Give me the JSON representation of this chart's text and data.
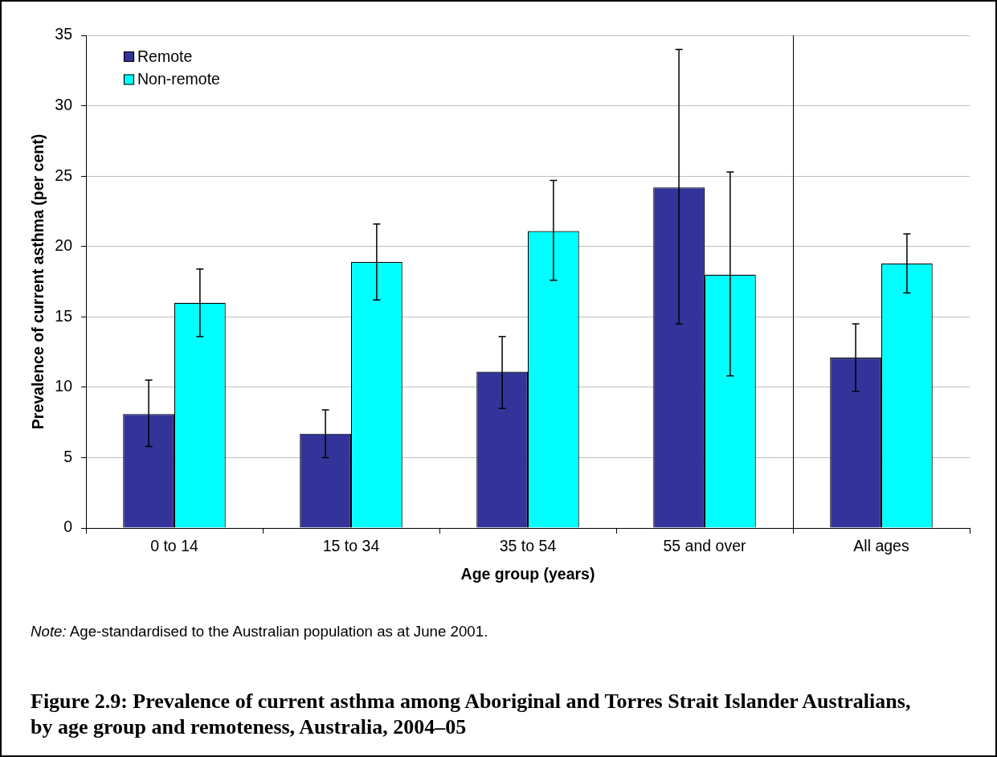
{
  "chart_data": {
    "type": "bar",
    "title": "Figure 2.9: Prevalence of current asthma among Aboriginal and Torres Strait Islander Australians, by age group and remoteness, Australia, 2004–05",
    "xlabel": "Age group (years)",
    "ylabel": "Prevalence of current asthma (per cent)",
    "categories": [
      "0 to 14",
      "15 to 34",
      "35 to 54",
      "55 and over",
      "All ages"
    ],
    "series": [
      {
        "name": "Remote",
        "color": "#333399",
        "values": [
          8.1,
          6.7,
          11.1,
          24.2,
          12.1
        ],
        "errors": [
          [
            5.8,
            10.5
          ],
          [
            5.0,
            8.4
          ],
          [
            8.5,
            13.6
          ],
          [
            14.5,
            34.0
          ],
          [
            9.7,
            14.5
          ]
        ]
      },
      {
        "name": "Non-remote",
        "color": "#00ffff",
        "values": [
          16.0,
          18.9,
          21.1,
          18.0,
          18.8
        ],
        "errors": [
          [
            13.6,
            18.4
          ],
          [
            16.2,
            21.6
          ],
          [
            17.6,
            24.7
          ],
          [
            10.8,
            25.3
          ],
          [
            16.7,
            20.9
          ]
        ]
      }
    ],
    "ylim": [
      0,
      35
    ],
    "yticks": [
      0,
      5,
      10,
      15,
      20,
      25,
      30,
      35
    ],
    "grid": "y",
    "legend": "top left",
    "annotations": [
      "Note: Age-standardised to the Australian population as at June 2001."
    ]
  }
}
